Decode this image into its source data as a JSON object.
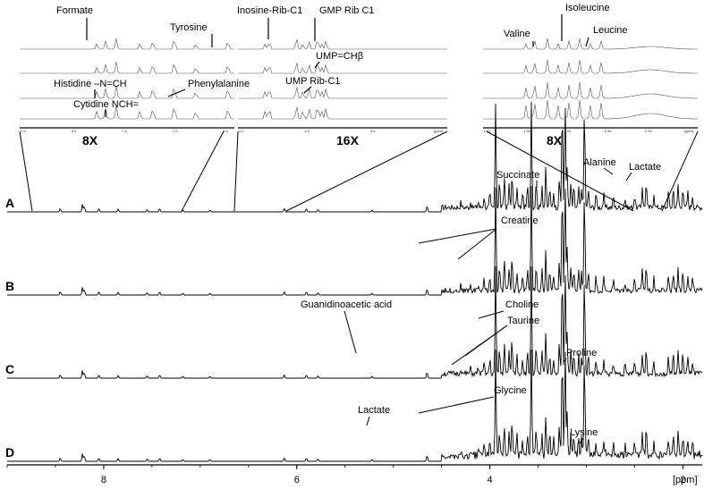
{
  "chart_data": {
    "type": "line",
    "xlabel": "[ppm]",
    "x_axis": {
      "reversed": true,
      "ticks": [
        8,
        6,
        4,
        2
      ]
    },
    "series": [
      {
        "name": "A"
      },
      {
        "name": "B"
      },
      {
        "name": "C"
      },
      {
        "name": "D"
      }
    ],
    "insets": [
      {
        "magnification": "8X",
        "labels": [
          "Formate",
          "Tyrosine",
          "Histidine –N=CH",
          "Phenylalanine",
          "Cytidine NCH="
        ],
        "tick_labels": [
          "8.4",
          "8.0",
          "7.6",
          "7.2",
          "6.8"
        ]
      },
      {
        "magnification": "16X",
        "labels": [
          "Inosine-Rib-C1",
          "GMP Rib C1",
          "UMP=CHβ",
          "UMP Rib-C1"
        ],
        "tick_labels": [
          "6.2",
          "6.0",
          "5.8",
          "[ppm]"
        ]
      },
      {
        "magnification": "8X",
        "labels": [
          "Valine",
          "Isoleucine",
          "Leucine"
        ],
        "tick_labels": [
          "1.10",
          "1.05",
          "1.00",
          "0.95",
          "0.90",
          "[ppm]"
        ]
      }
    ],
    "annotations": [
      "Succinate",
      "Alanine",
      "Lactate",
      "Creatine",
      "Choline",
      "Taurine",
      "Guanidinoacetic acid",
      "Proline",
      "Glycine",
      "Lactate",
      "Lysine"
    ]
  }
}
